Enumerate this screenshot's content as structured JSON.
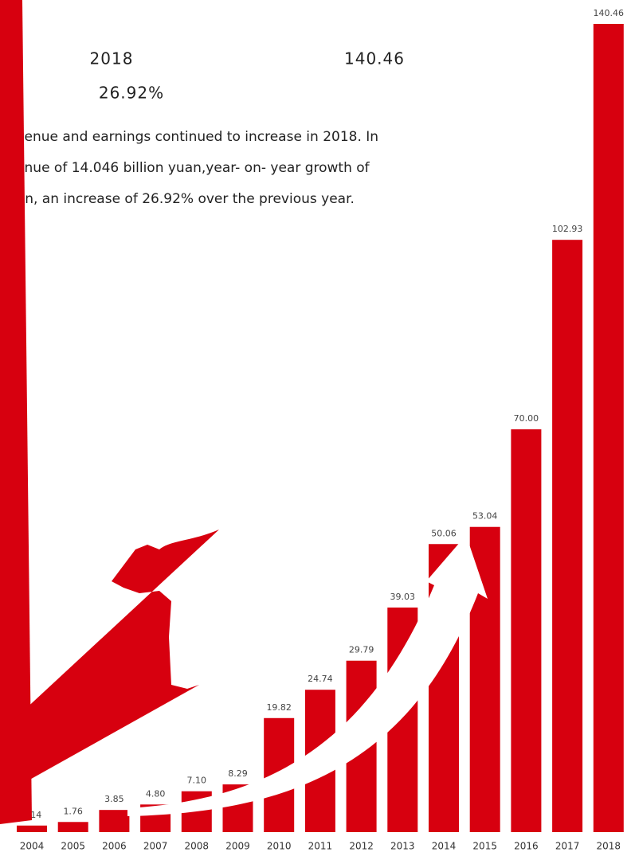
{
  "chart_data": {
    "type": "bar",
    "headline": {
      "year": "2018",
      "revenue": "140.46",
      "growth": "26.92%"
    },
    "paragraph": [
      "evenue and earnings continued to increase in 2018. In",
      "venue of 14.046 billion yuan,year- on- year growth of",
      "uan, an increase of 26.92% over the previous year."
    ],
    "categories": [
      "2004",
      "2005",
      "2006",
      "2007",
      "2008",
      "2009",
      "2010",
      "2011",
      "2012",
      "2013",
      "2014",
      "2015",
      "2016",
      "2017",
      "2018"
    ],
    "values": [
      1.14,
      1.76,
      3.85,
      4.8,
      7.1,
      8.29,
      19.82,
      24.74,
      29.79,
      39.03,
      50.06,
      53.04,
      70.0,
      102.93,
      140.46
    ],
    "value_labels": [
      "1.14",
      "1.76",
      "3.85",
      "4.80",
      "7.10",
      "8.29",
      "19.82",
      "24.74",
      "29.79",
      "39.03",
      "50.06",
      "53.04",
      "70.00",
      "102.93",
      "140.46"
    ],
    "color": "#d7000f"
  }
}
